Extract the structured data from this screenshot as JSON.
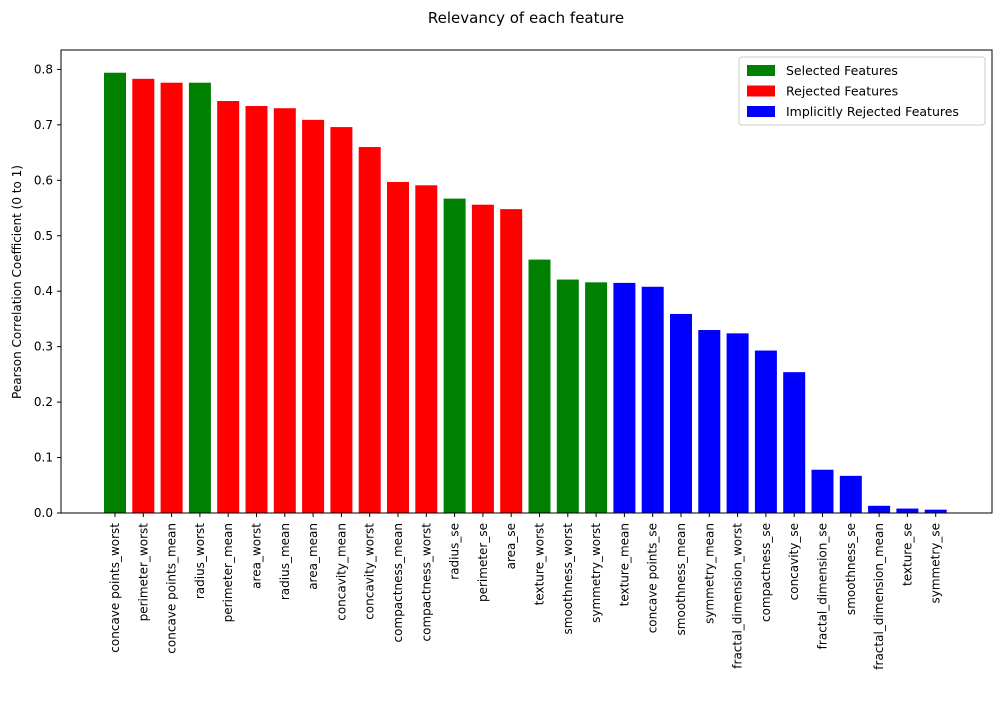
{
  "chart_data": {
    "type": "bar",
    "title": "Relevancy of each feature",
    "xlabel": "",
    "ylabel": "Pearson Correlation Coefficient (0 to 1)",
    "ylim": [
      0,
      0.835
    ],
    "yticks": [
      "0.0",
      "0.1",
      "0.2",
      "0.3",
      "0.4",
      "0.5",
      "0.6",
      "0.7",
      "0.8"
    ],
    "grid": false,
    "legend_position": "top-right",
    "legend": [
      {
        "label": "Selected Features",
        "color": "#008000"
      },
      {
        "label": "Rejected Features",
        "color": "#ff0000"
      },
      {
        "label": "Implicitly Rejected Features",
        "color": "#0000ff"
      }
    ],
    "categories": [
      "concave points_worst",
      "perimeter_worst",
      "concave points_mean",
      "radius_worst",
      "perimeter_mean",
      "area_worst",
      "radius_mean",
      "area_mean",
      "concavity_mean",
      "concavity_worst",
      "compactness_mean",
      "compactness_worst",
      "radius_se",
      "perimeter_se",
      "area_se",
      "texture_worst",
      "smoothness_worst",
      "symmetry_worst",
      "texture_mean",
      "concave points_se",
      "smoothness_mean",
      "symmetry_mean",
      "fractal_dimension_worst",
      "compactness_se",
      "concavity_se",
      "fractal_dimension_se",
      "smoothness_se",
      "fractal_dimension_mean",
      "texture_se",
      "symmetry_se"
    ],
    "values": [
      0.794,
      0.783,
      0.776,
      0.776,
      0.743,
      0.734,
      0.73,
      0.709,
      0.696,
      0.66,
      0.597,
      0.591,
      0.567,
      0.556,
      0.548,
      0.457,
      0.421,
      0.416,
      0.415,
      0.408,
      0.359,
      0.33,
      0.324,
      0.293,
      0.254,
      0.078,
      0.067,
      0.013,
      0.008,
      0.006
    ],
    "groups": [
      "Selected",
      "Rejected",
      "Rejected",
      "Selected",
      "Rejected",
      "Rejected",
      "Rejected",
      "Rejected",
      "Rejected",
      "Rejected",
      "Rejected",
      "Rejected",
      "Selected",
      "Rejected",
      "Rejected",
      "Selected",
      "Selected",
      "Selected",
      "Implicit",
      "Implicit",
      "Implicit",
      "Implicit",
      "Implicit",
      "Implicit",
      "Implicit",
      "Implicit",
      "Implicit",
      "Implicit",
      "Implicit",
      "Implicit"
    ],
    "group_colors": {
      "Selected": "#008000",
      "Rejected": "#ff0000",
      "Implicit": "#0000ff"
    }
  }
}
